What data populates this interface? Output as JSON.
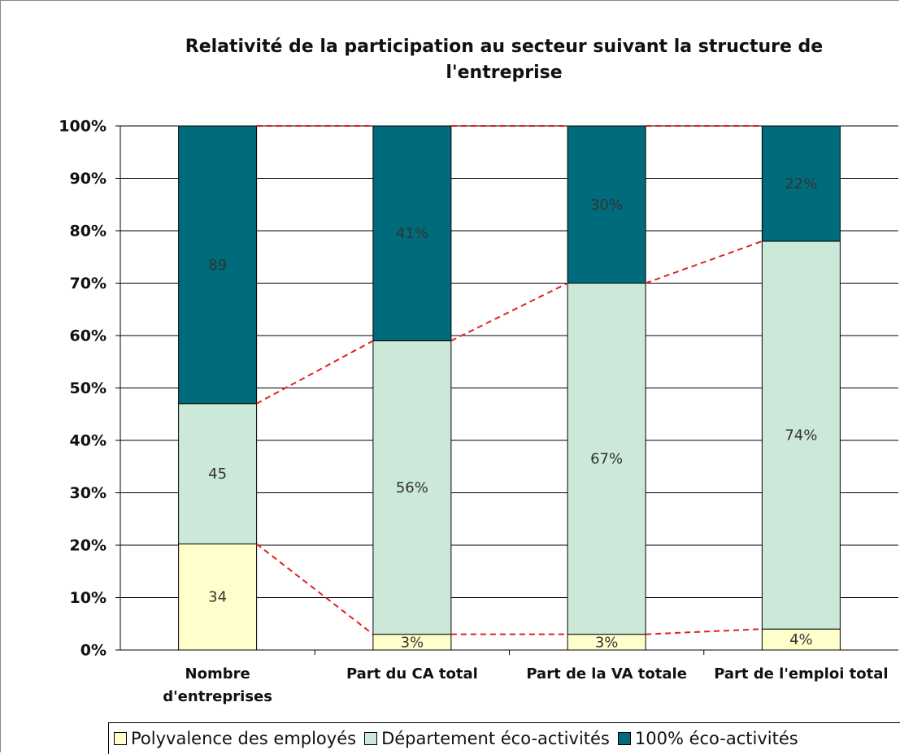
{
  "chart_data": {
    "type": "stacked_percent_bar",
    "title": "Relativité de la participation au secteur suivant la structure de l'entreprise",
    "categories": [
      "Nombre d'entreprises",
      "Part du CA total",
      "Part de la VA totale",
      "Part de l'emploi total"
    ],
    "series": [
      {
        "name": "Polyvalence des employés",
        "color": "#FFFFCC",
        "values": [
          34,
          3,
          3,
          4
        ],
        "value_labels": [
          "34",
          "3%",
          "3%",
          "4%"
        ]
      },
      {
        "name": "Département éco-activités",
        "color": "#CCE8D8",
        "values": [
          45,
          56,
          67,
          74
        ],
        "value_labels": [
          "45",
          "56%",
          "67%",
          "74%"
        ]
      },
      {
        "name": "100% éco-activités",
        "color": "#006B7A",
        "values": [
          89,
          41,
          30,
          22
        ],
        "value_labels": [
          "89",
          "41%",
          "30%",
          "22%"
        ]
      }
    ],
    "ylim": [
      0,
      100
    ],
    "yticks": [
      {
        "value": 0,
        "label": "0%"
      },
      {
        "value": 10,
        "label": "10%"
      },
      {
        "value": 20,
        "label": "20%"
      },
      {
        "value": 30,
        "label": "30%"
      },
      {
        "value": 40,
        "label": "40%"
      },
      {
        "value": 50,
        "label": "50%"
      },
      {
        "value": 60,
        "label": "60%"
      },
      {
        "value": 70,
        "label": "70%"
      },
      {
        "value": 80,
        "label": "80%"
      },
      {
        "value": 90,
        "label": "90%"
      },
      {
        "value": 100,
        "label": "100%"
      }
    ],
    "grid": true,
    "series_lines": true,
    "series_line_color": "#E02020",
    "legend": "bottom"
  }
}
